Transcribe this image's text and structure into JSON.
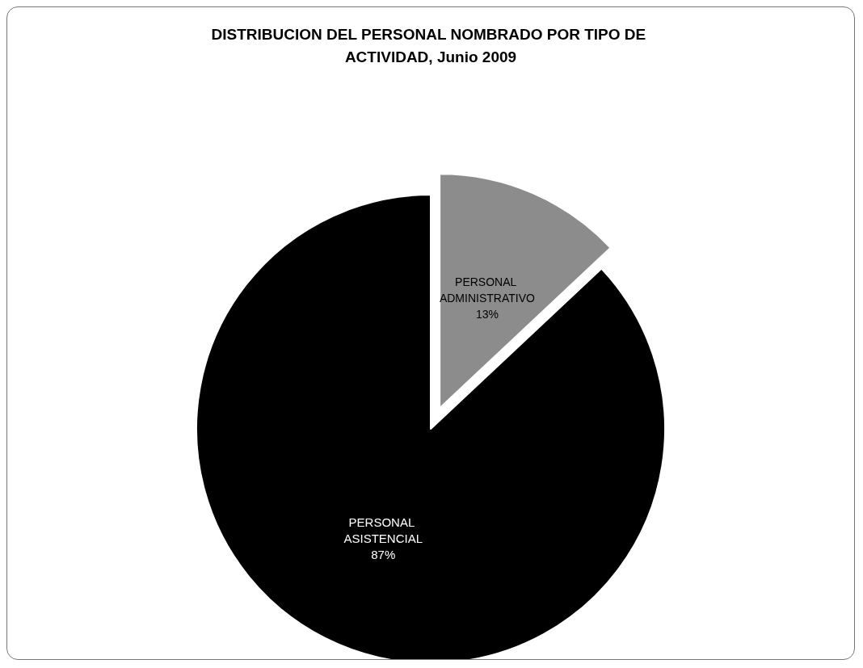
{
  "chart_data": {
    "type": "pie",
    "title": "DISTRIBUCION DEL PERSONAL NOMBRADO POR TIPO DE ACTIVIDAD, Junio 2009",
    "categories": [
      "PERSONAL ADMINISTRATIVO",
      "PERSONAL ASISTENCIAL"
    ],
    "values": [
      13,
      87
    ],
    "colors": [
      "#8c8c8c",
      "#000000"
    ],
    "value_labels": [
      "13%",
      "87%"
    ],
    "legend": false
  }
}
